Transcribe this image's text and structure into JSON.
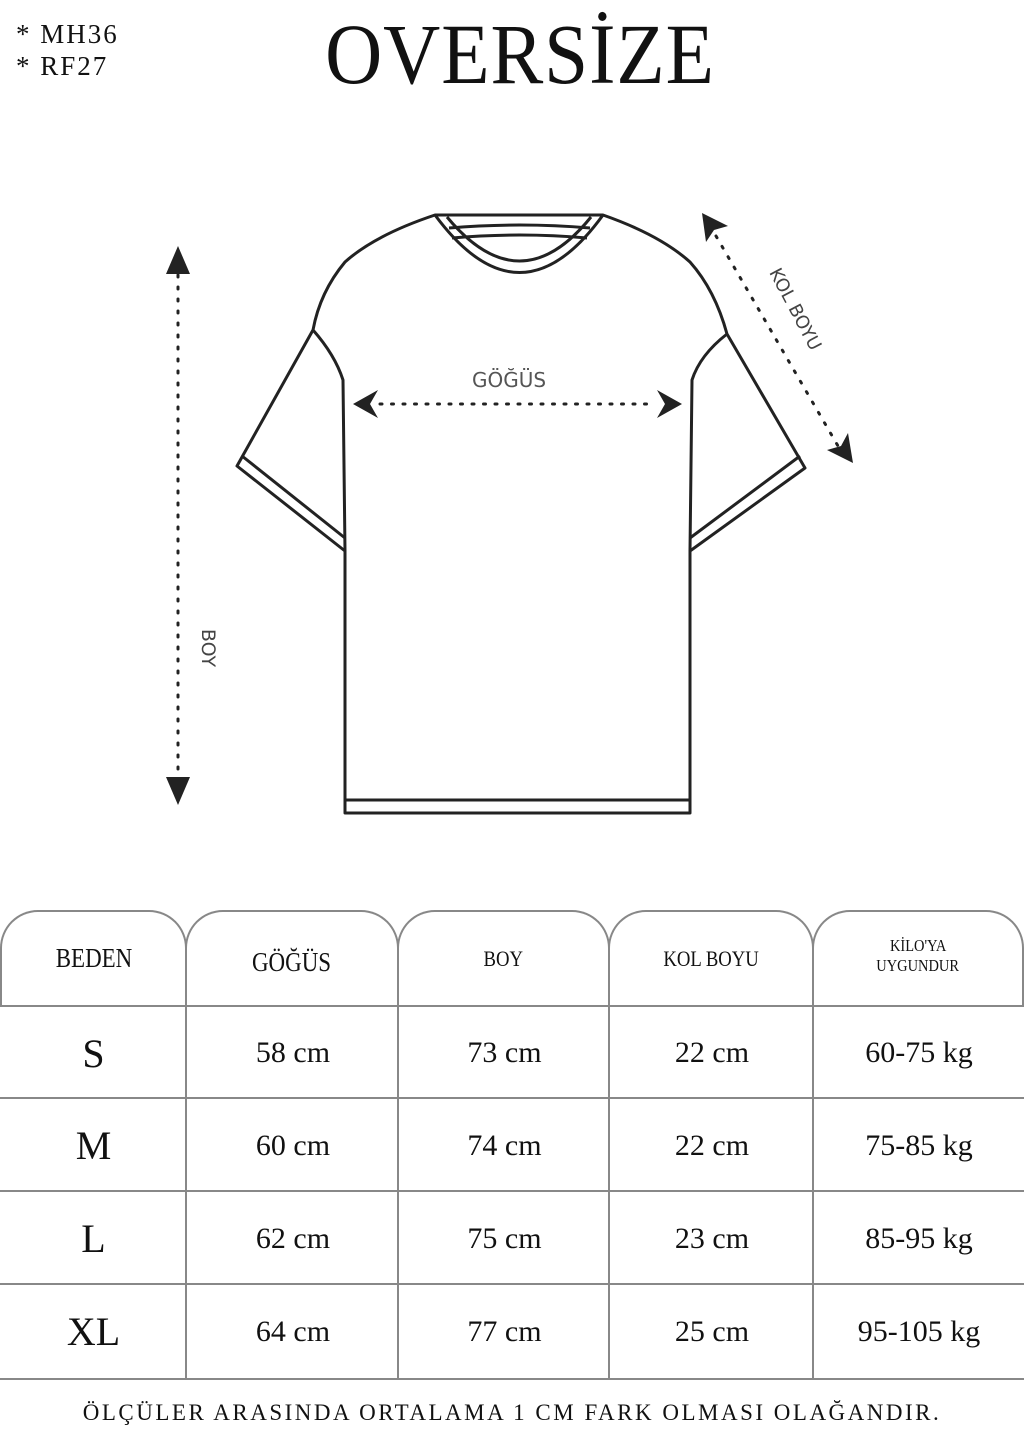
{
  "codes": [
    "*  MH36",
    "*  RF27"
  ],
  "title": "OVERSİZE",
  "diagram": {
    "labels": {
      "chest": "GÖĞÜS",
      "length": "BOY",
      "sleeve": "KOL BOYU"
    }
  },
  "table": {
    "headers": [
      "BEDEN",
      "GÖĞÜS",
      "BOY",
      "KOL BOYU",
      "KİLO'YA UYGUNDUR"
    ],
    "header_weight_lines": [
      "KİLO'YA",
      "UYGUNDUR"
    ],
    "rows": [
      [
        "S",
        "58 cm",
        "73 cm",
        "22  cm",
        "60-75 kg"
      ],
      [
        "M",
        "60 cm",
        "74 cm",
        "22 cm",
        "75-85 kg"
      ],
      [
        "L",
        "62 cm",
        "75 cm",
        "23 cm",
        "85-95 kg"
      ],
      [
        "XL",
        "64 cm",
        "77 cm",
        "25 cm",
        "95-105 kg"
      ]
    ]
  },
  "footer": "ÖLÇÜLER ARASINDA ORTALAMA 1 CM FARK OLMASI OLAĞANDIR."
}
